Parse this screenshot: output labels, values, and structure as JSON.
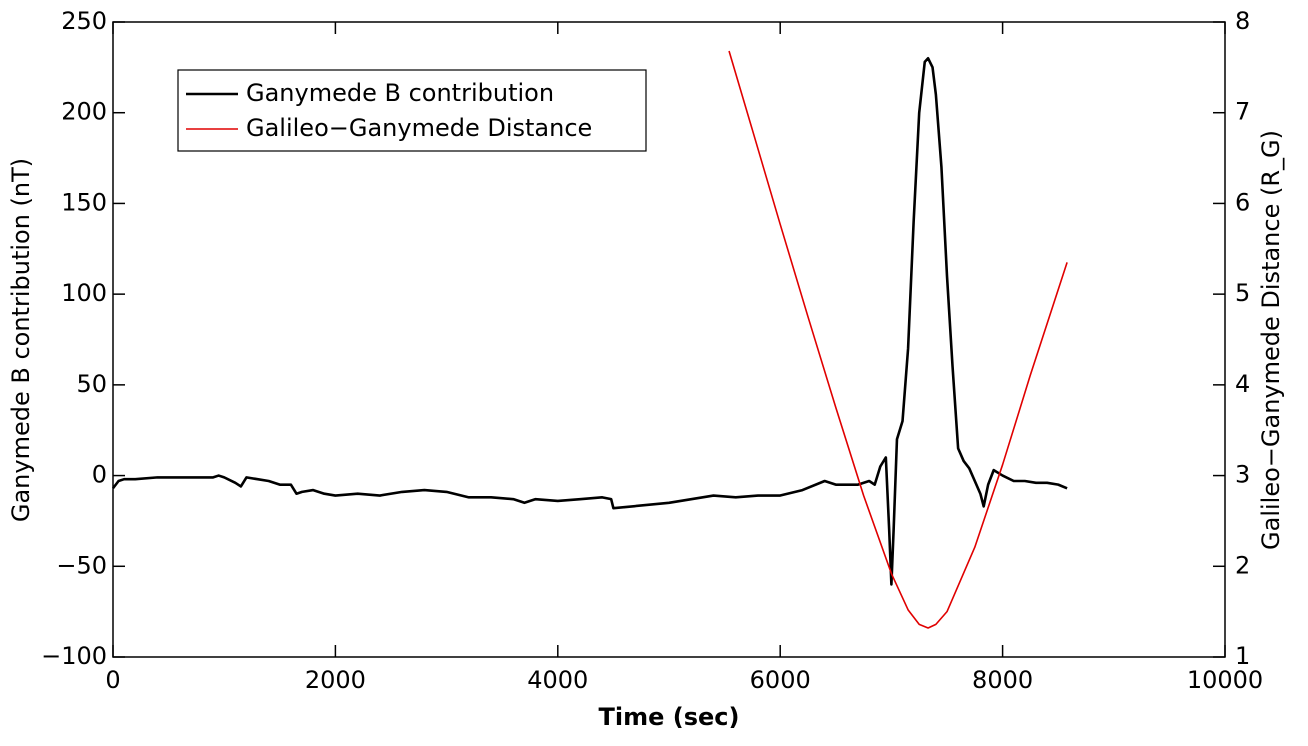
{
  "chart_data": {
    "type": "line",
    "x_label": "Time (sec)",
    "y_label": "Ganymede B contribution (nT)",
    "y2_label": "Galileo−Ganymede Distance (R_G)",
    "xlim": [
      0,
      10000
    ],
    "xticks": [
      0,
      2000,
      4000,
      6000,
      8000,
      10000
    ],
    "ylim": [
      -100,
      250
    ],
    "yticks": [
      {
        "value": -100,
        "label": "−100"
      },
      {
        "value": -50,
        "label": "−50"
      },
      0,
      50,
      100,
      150,
      200,
      250
    ],
    "y2lim": [
      1,
      8
    ],
    "y2ticks": [
      1,
      2,
      3,
      4,
      5,
      6,
      7,
      8
    ],
    "legend": "upper left",
    "series": [
      {
        "name": "Ganymede B contribution",
        "color": "#000000",
        "x": [
          0,
          50,
          100,
          200,
          400,
          600,
          800,
          900,
          950,
          1000,
          1100,
          1150,
          1200,
          1300,
          1400,
          1500,
          1600,
          1650,
          1700,
          1800,
          1900,
          2000,
          2200,
          2400,
          2600,
          2800,
          3000,
          3200,
          3400,
          3600,
          3700,
          3800,
          4000,
          4200,
          4400,
          4480,
          4500,
          5000,
          5400,
          5600,
          5800,
          6000,
          6200,
          6400,
          6500,
          6600,
          6700,
          6800,
          6850,
          6900,
          6950,
          6980,
          7000,
          7020,
          7050,
          7100,
          7150,
          7200,
          7250,
          7300,
          7330,
          7370,
          7400,
          7450,
          7500,
          7550,
          7600,
          7650,
          7700,
          7750,
          7800,
          7830,
          7870,
          7920,
          8000,
          8100,
          8200,
          8300,
          8400,
          8500,
          8580
        ],
        "values": [
          -7,
          -3,
          -2,
          -2,
          -1,
          -1,
          -1,
          -1,
          0,
          -1,
          -4,
          -6,
          -1,
          -2,
          -3,
          -5,
          -5,
          -10,
          -9,
          -8,
          -10,
          -11,
          -10,
          -11,
          -9,
          -8,
          -9,
          -12,
          -12,
          -13,
          -15,
          -13,
          -14,
          -13,
          -12,
          -13,
          -18,
          -15,
          -11,
          -12,
          -11,
          -11,
          -8,
          -3,
          -5,
          -5,
          -5,
          -3,
          -5,
          5,
          10,
          -30,
          -60,
          -30,
          20,
          30,
          70,
          140,
          200,
          228,
          230,
          225,
          210,
          170,
          110,
          60,
          15,
          8,
          4,
          -3,
          -10,
          -17,
          -5,
          3,
          0,
          -3,
          -3,
          -4,
          -4,
          -5,
          -7
        ]
      },
      {
        "name": "Galileo−Ganymede Distance",
        "color": "#e00000",
        "axis": "y2",
        "x": [
          5540,
          5750,
          6000,
          6250,
          6500,
          6750,
          7000,
          7150,
          7250,
          7330,
          7400,
          7500,
          7750,
          8000,
          8250,
          8580
        ],
        "values": [
          7.68,
          6.81,
          5.77,
          4.75,
          3.75,
          2.78,
          1.92,
          1.52,
          1.36,
          1.32,
          1.36,
          1.5,
          2.21,
          3.12,
          4.11,
          5.35
        ]
      }
    ]
  }
}
